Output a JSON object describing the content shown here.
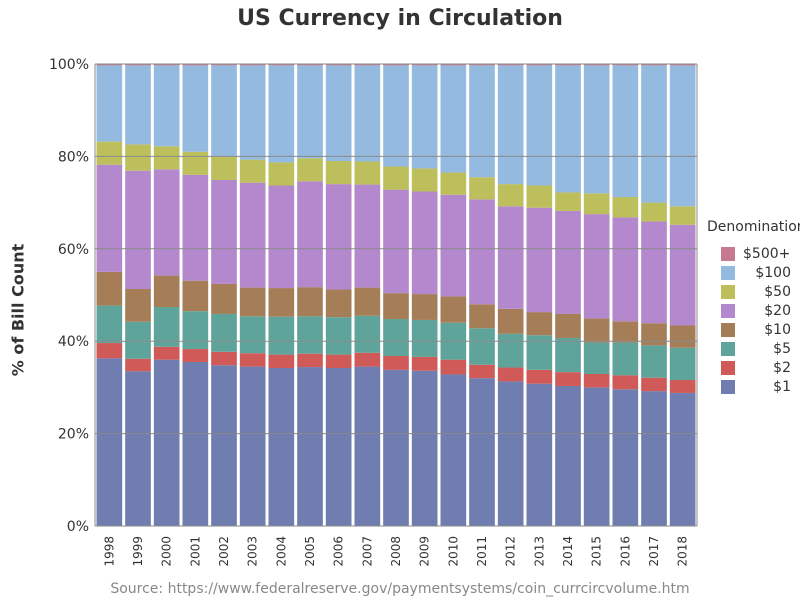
{
  "chart_data": {
    "type": "bar",
    "stacked": true,
    "title": "US Currency in Circulation",
    "ylabel": "% of Bill Count",
    "xlabel": "",
    "ylim": [
      0,
      100
    ],
    "yticks": [
      "0%",
      "20%",
      "40%",
      "60%",
      "80%",
      "100%"
    ],
    "grid": true,
    "legend_title": "Denomination",
    "legend_position": "right",
    "source": "Source: https://www.federalreserve.gov/paymentsystems/coin_currcircvolume.htm",
    "categories": [
      "1998",
      "1999",
      "2000",
      "2001",
      "2002",
      "2003",
      "2004",
      "2005",
      "2006",
      "2007",
      "2008",
      "2009",
      "2010",
      "2011",
      "2012",
      "2013",
      "2014",
      "2015",
      "2016",
      "2017",
      "2018"
    ],
    "series": [
      {
        "name": "$1",
        "color": "#6f7db0",
        "values": [
          36.3,
          33.5,
          36.0,
          35.5,
          34.8,
          34.5,
          34.2,
          34.4,
          34.2,
          34.5,
          33.8,
          33.6,
          32.8,
          32.0,
          31.3,
          30.8,
          30.3,
          30.0,
          29.6,
          29.2,
          28.8
        ]
      },
      {
        "name": "$2",
        "color": "#d05a57",
        "values": [
          3.3,
          2.7,
          2.8,
          2.8,
          2.9,
          2.9,
          2.9,
          2.9,
          2.9,
          3.0,
          3.0,
          3.0,
          3.2,
          2.9,
          3.0,
          3.0,
          3.0,
          2.9,
          3.0,
          2.9,
          2.8
        ]
      },
      {
        "name": "$5",
        "color": "#5fa49a",
        "values": [
          8.1,
          8.0,
          8.6,
          8.2,
          8.2,
          8.0,
          8.2,
          8.1,
          8.1,
          8.0,
          8.0,
          8.0,
          8.0,
          7.9,
          7.3,
          7.5,
          7.4,
          6.8,
          7.1,
          7.0,
          7.0
        ]
      },
      {
        "name": "$10",
        "color": "#a57e57",
        "values": [
          7.3,
          7.1,
          6.8,
          6.6,
          6.5,
          6.2,
          6.2,
          6.3,
          6.0,
          6.1,
          5.6,
          5.6,
          5.7,
          5.2,
          5.4,
          5.0,
          5.2,
          5.2,
          4.6,
          4.8,
          4.8
        ]
      },
      {
        "name": "$20",
        "color": "#b388cc",
        "values": [
          23.2,
          25.6,
          23.0,
          22.9,
          22.5,
          22.7,
          22.2,
          22.9,
          22.8,
          22.3,
          22.4,
          22.2,
          22.0,
          22.7,
          22.2,
          22.6,
          22.3,
          22.6,
          22.5,
          22.0,
          21.8
        ]
      },
      {
        "name": "$50",
        "color": "#bcbf5c",
        "values": [
          5.0,
          5.7,
          5.0,
          5.0,
          5.0,
          5.0,
          5.0,
          5.0,
          5.0,
          5.0,
          5.0,
          5.0,
          4.8,
          4.8,
          4.8,
          4.8,
          4.0,
          4.5,
          4.4,
          4.1,
          4.0
        ]
      },
      {
        "name": "$100",
        "color": "#94badf",
        "values": [
          16.5,
          17.1,
          17.5,
          18.7,
          19.8,
          20.4,
          21.0,
          20.1,
          20.7,
          20.8,
          21.9,
          22.3,
          23.2,
          24.2,
          25.7,
          26.0,
          27.5,
          27.7,
          28.5,
          29.7,
          30.5
        ]
      },
      {
        "name": "$500+",
        "color": "#c7798f",
        "values": [
          0.3,
          0.3,
          0.3,
          0.3,
          0.3,
          0.3,
          0.3,
          0.3,
          0.3,
          0.3,
          0.3,
          0.3,
          0.3,
          0.3,
          0.3,
          0.3,
          0.3,
          0.3,
          0.3,
          0.3,
          0.3
        ]
      }
    ]
  }
}
